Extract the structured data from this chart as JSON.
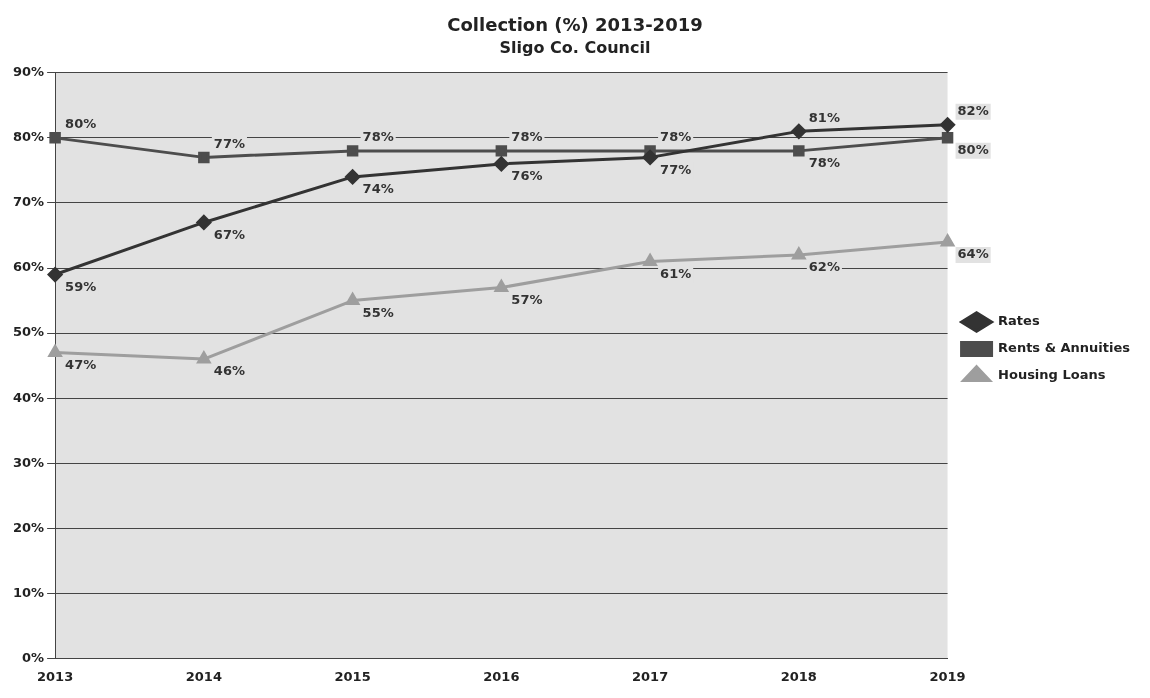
{
  "chart_data": {
    "type": "line",
    "title": "Collection (%) 2013-2019",
    "subtitle": "Sligo Co. Council",
    "categories": [
      "2013",
      "2014",
      "2015",
      "2016",
      "2017",
      "2018",
      "2019"
    ],
    "series": [
      {
        "name": "Rates",
        "color": "#333333",
        "marker": "diamond",
        "values": [
          59,
          67,
          74,
          76,
          77,
          81,
          82
        ],
        "value_labels": [
          "59%",
          "67%",
          "74%",
          "76%",
          "77%",
          "81%",
          "82%"
        ]
      },
      {
        "name": "Rents & Annuities",
        "color": "#4d4d4d",
        "marker": "square",
        "values": [
          80,
          77,
          78,
          78,
          78,
          78,
          80
        ],
        "value_labels": [
          "80%",
          "77%",
          "78%",
          "78%",
          "78%",
          "78%",
          "80%"
        ]
      },
      {
        "name": "Housing Loans",
        "color": "#9e9e9e",
        "marker": "triangle",
        "values": [
          47,
          46,
          55,
          57,
          61,
          62,
          64
        ],
        "value_labels": [
          "47%",
          "46%",
          "55%",
          "57%",
          "61%",
          "62%",
          "64%"
        ]
      }
    ],
    "ylim": [
      0,
      90
    ],
    "yticks": [
      {
        "value": 0,
        "label": "0%"
      },
      {
        "value": 10,
        "label": "10%"
      },
      {
        "value": 20,
        "label": "20%"
      },
      {
        "value": 30,
        "label": "30%"
      },
      {
        "value": 40,
        "label": "40%"
      },
      {
        "value": 50,
        "label": "50%"
      },
      {
        "value": 60,
        "label": "60%"
      },
      {
        "value": 70,
        "label": "70%"
      },
      {
        "value": 80,
        "label": "80%"
      },
      {
        "value": 90,
        "label": "90%"
      }
    ],
    "grid": "y",
    "legend": "right",
    "line_style": "solid"
  }
}
